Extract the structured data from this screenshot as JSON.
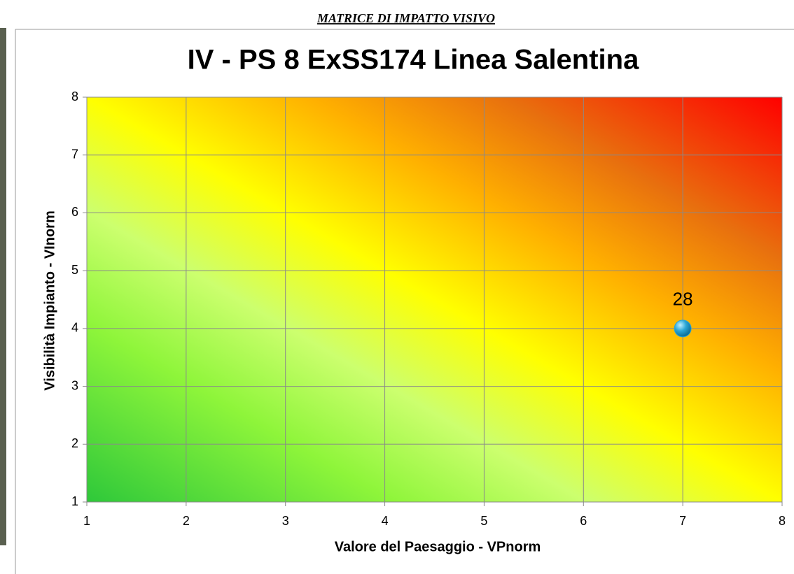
{
  "header": "MATRICE DI IMPATTO VISIVO",
  "chart_data": {
    "type": "scatter",
    "title": "IV - PS 8 ExSS174 Linea Salentina",
    "x_label": "Valore del Paesaggio - VPnorm",
    "y_label": "Visibilità Impianto - VInorm",
    "x": [
      7
    ],
    "y": [
      4
    ],
    "point_labels": [
      "28"
    ],
    "color": "#2aa6d6",
    "xlim": [
      1,
      8
    ],
    "ylim": [
      1,
      8
    ],
    "xticks": [
      1,
      2,
      3,
      4,
      5,
      6,
      7,
      8
    ],
    "yticks": [
      1,
      2,
      3,
      4,
      5,
      6,
      7,
      8
    ],
    "grid": true
  }
}
